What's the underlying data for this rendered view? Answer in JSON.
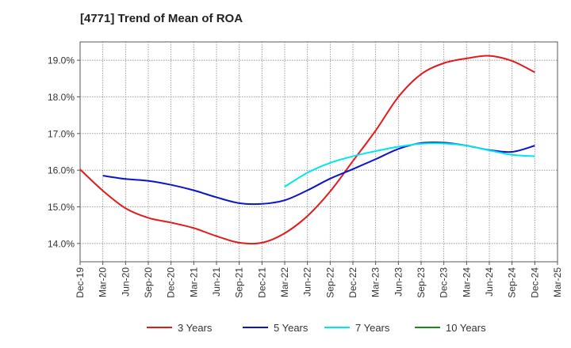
{
  "chart_data": {
    "type": "line",
    "title": "[4771]  Trend of Mean of ROA",
    "xlabel": "",
    "ylabel": "",
    "x_ticks": [
      "Dec-19",
      "Mar-20",
      "Jun-20",
      "Sep-20",
      "Dec-20",
      "Mar-21",
      "Jun-21",
      "Sep-21",
      "Dec-21",
      "Mar-22",
      "Jun-22",
      "Sep-22",
      "Dec-22",
      "Mar-23",
      "Jun-23",
      "Sep-23",
      "Dec-23",
      "Mar-24",
      "Jun-24",
      "Sep-24",
      "Dec-24",
      "Mar-25"
    ],
    "y_ticks": [
      {
        "value": 14.0,
        "label": "14.0%"
      },
      {
        "value": 15.0,
        "label": "15.0%"
      },
      {
        "value": 16.0,
        "label": "16.0%"
      },
      {
        "value": 17.0,
        "label": "17.0%"
      },
      {
        "value": 18.0,
        "label": "18.0%"
      },
      {
        "value": 19.0,
        "label": "19.0%"
      }
    ],
    "ylim": [
      13.5,
      19.5
    ],
    "grid": true,
    "legend_position": "bottom",
    "series": [
      {
        "name": "3 Years",
        "color": "#e31a1c",
        "values": [
          16.02,
          15.44,
          14.96,
          14.7,
          14.57,
          14.42,
          14.2,
          14.02,
          14.02,
          14.28,
          14.75,
          15.42,
          16.25,
          17.08,
          18.0,
          18.62,
          18.92,
          19.05,
          19.12,
          18.98,
          18.67,
          null
        ]
      },
      {
        "name": "5 Years",
        "color": "#0a14c8",
        "values": [
          null,
          15.85,
          15.76,
          15.71,
          15.6,
          15.45,
          15.26,
          15.1,
          15.08,
          15.18,
          15.45,
          15.77,
          16.03,
          16.3,
          16.58,
          16.74,
          16.75,
          16.67,
          16.55,
          16.5,
          16.67,
          null
        ]
      },
      {
        "name": "7 Years",
        "color": "#00e5ee",
        "values": [
          null,
          null,
          null,
          null,
          null,
          null,
          null,
          null,
          null,
          15.55,
          15.93,
          16.2,
          16.38,
          16.52,
          16.64,
          16.72,
          16.73,
          16.67,
          16.54,
          16.42,
          16.38,
          null
        ]
      },
      {
        "name": "10 Years",
        "color": "#1a8a1a",
        "values": [
          null,
          null,
          null,
          null,
          null,
          null,
          null,
          null,
          null,
          null,
          null,
          null,
          null,
          null,
          null,
          null,
          null,
          null,
          null,
          null,
          null,
          null
        ]
      }
    ]
  }
}
